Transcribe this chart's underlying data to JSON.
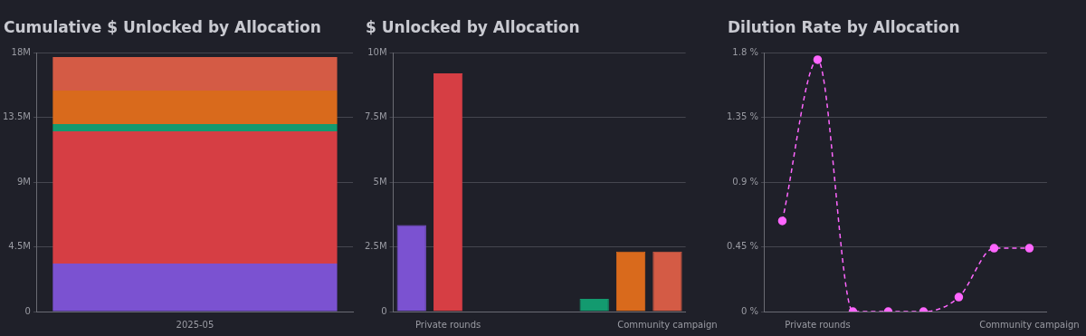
{
  "chart_data": [
    {
      "type": "bar",
      "title": "Cumulative $ Unlocked by Allocation",
      "categories": [
        "2025-05"
      ],
      "stacked": true,
      "grid": "y",
      "ylim": [
        0,
        18
      ],
      "yticks": [
        0,
        {
          "value": 4.5,
          "label": "4.5M"
        },
        {
          "value": 9,
          "label": "9M"
        },
        {
          "value": 13.5,
          "label": "13.5M"
        },
        {
          "value": 18,
          "label": "18M"
        }
      ],
      "series": [
        {
          "color": "#7b52d1",
          "values": [
            3.33
          ]
        },
        {
          "color": "#d63e44",
          "values": [
            9.2
          ]
        },
        {
          "color": "#139a6f",
          "values": [
            0.5
          ]
        },
        {
          "color": "#d96a1c",
          "values": [
            2.33
          ]
        },
        {
          "color": "#d45b45",
          "values": [
            2.33
          ]
        }
      ]
    },
    {
      "type": "bar",
      "title": "$ Unlocked by Allocation",
      "categories": [
        null,
        "Private rounds",
        null,
        null,
        null,
        null,
        null,
        "Community campaign"
      ],
      "grid": "y",
      "ylim": [
        0,
        10
      ],
      "yticks": [
        0,
        {
          "value": 2.5,
          "label": "2.5M"
        },
        {
          "value": 5,
          "label": "5M"
        },
        {
          "value": 7.5,
          "label": "7.5M"
        },
        {
          "value": 10,
          "label": "10M"
        }
      ],
      "values": [
        3.34,
        9.2,
        0,
        0,
        0,
        0.49,
        2.32,
        2.32
      ],
      "colors": [
        "#7b52d1",
        "#d63e44",
        "#d63e44",
        "#d63e44",
        "#d63e44",
        "#139a6f",
        "#d96a1c",
        "#d45b45"
      ]
    },
    {
      "type": "line",
      "title": "Dilution Rate by Allocation",
      "categories": [
        null,
        "Private rounds",
        null,
        null,
        null,
        null,
        null,
        "Community campaign"
      ],
      "grid": "y",
      "ylim": [
        0,
        1.8
      ],
      "yticks": [
        {
          "value": 0,
          "label": "0 %"
        },
        {
          "value": 0.45,
          "label": "0.45 %"
        },
        {
          "value": 0.9,
          "label": "0.9 %"
        },
        {
          "value": 1.35,
          "label": "1.35 %"
        },
        {
          "value": 1.8,
          "label": "1.8 %"
        }
      ],
      "marker": "circle",
      "line_style": "dashed",
      "color": "#ff66ff",
      "values": [
        0.63,
        1.75,
        0,
        0,
        0,
        0.1,
        0.44,
        0.44
      ]
    }
  ]
}
